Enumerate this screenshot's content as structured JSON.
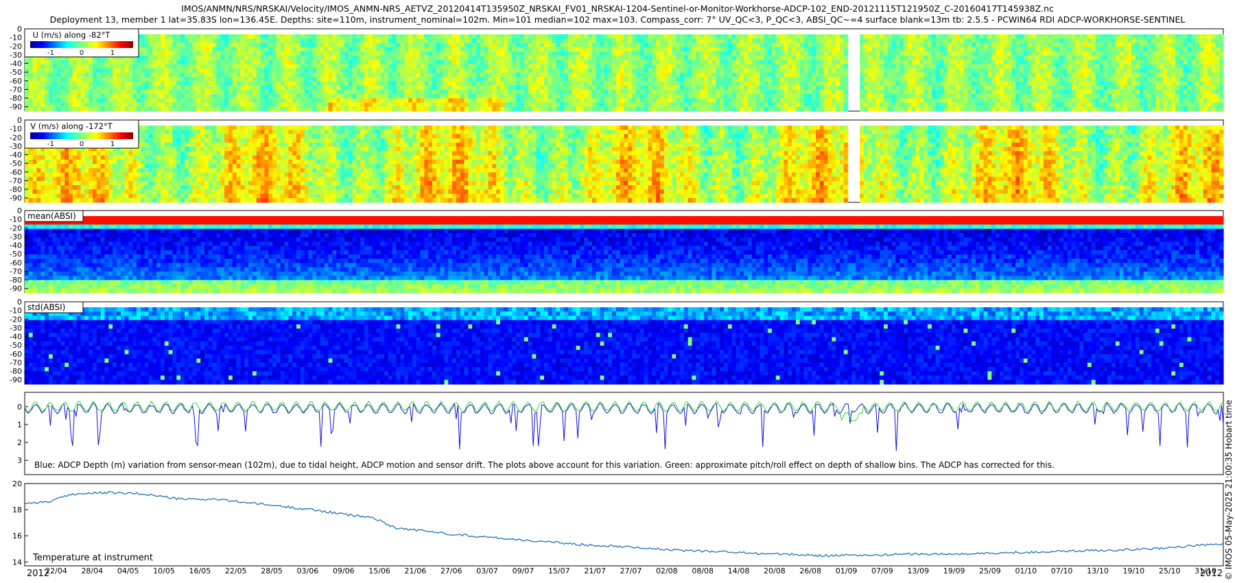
{
  "header": {
    "title_line1": "IMOS/ANMN/NRS/NRSKAI/Velocity/IMOS_ANMN-NRS_AETVZ_20120414T135950Z_NRSKAI_FV01_NRSKAI-1204-Sentinel-or-Monitor-Workhorse-ADCP-102_END-20121115T121950Z_C-20160417T145938Z.nc",
    "title_line2": "Deployment 13, member 1 lat=35.83S lon=136.45E. Depths: site=110m, instrument_nominal=102m. Min=101 median=102 max=103. Compass_corr: 7° UV_QC<3, P_QC<3, ABSI_QC~=4 surface blank=13m tb: 2.5.5 - PCWIN64 RDI ADCP-WORKHORSE-SENTINEL"
  },
  "side_credit": "© IMOS 05-May-2025 21:00:35 Hobart time",
  "colors": {
    "blue_line": "#1010d8",
    "green_line": "#22dd22",
    "temp_line": "#1f6fb4"
  },
  "chart_data": [
    {
      "type": "heatmap",
      "id": "u",
      "legend_title": "U (m/s) along -82°T",
      "colorbar_ticks": [
        "-1",
        "0",
        "1"
      ],
      "y_ticks": [
        "0",
        "-10",
        "-20",
        "-30",
        "-40",
        "-50",
        "-60",
        "-70",
        "-80",
        "-90"
      ],
      "ylim": [
        -95,
        0
      ]
    },
    {
      "type": "heatmap",
      "id": "v",
      "legend_title": "V (m/s) along -172°T",
      "colorbar_ticks": [
        "-1",
        "0",
        "1"
      ],
      "y_ticks": [
        "0",
        "-10",
        "-20",
        "-30",
        "-40",
        "-50",
        "-60",
        "-70",
        "-80",
        "-90"
      ],
      "ylim": [
        -95,
        0
      ]
    },
    {
      "type": "heatmap",
      "id": "mean_absi",
      "label": "mean(ABSI)",
      "y_ticks": [
        "0",
        "-10",
        "-20",
        "-30",
        "-40",
        "-50",
        "-60",
        "-70",
        "-80",
        "-90"
      ],
      "ylim": [
        -95,
        0
      ]
    },
    {
      "type": "heatmap",
      "id": "std_absi",
      "label": "std(ABSI)",
      "y_ticks": [
        "0",
        "-10",
        "-20",
        "-30",
        "-40",
        "-50",
        "-60",
        "-70",
        "-80",
        "-90"
      ],
      "ylim": [
        -95,
        0
      ]
    },
    {
      "type": "line",
      "id": "depth",
      "caption": "Blue: ADCP Depth (m) variation from sensor-mean (102m), due to tidal height, ADCP motion and sensor drift. The plots above account for this variation. Green: approximate pitch/roll effect on depth of shallow bins. The ADCP has corrected for this.",
      "y_ticks": [
        "0",
        "1",
        "2",
        "3"
      ],
      "ylim": [
        3.8,
        -0.8
      ],
      "series": [
        {
          "name": "ADCP depth variation (blue)",
          "base": 0.0
        },
        {
          "name": "pitch/roll effect (green)",
          "base": 0.1
        }
      ]
    },
    {
      "type": "line",
      "id": "temperature",
      "label": "Temperature at instrument",
      "y_ticks": [
        "20",
        "18",
        "16",
        "14"
      ],
      "ylim": [
        13.7,
        20
      ],
      "series": [
        {
          "name": "Temperature",
          "x": [
            0,
            0.02,
            0.04,
            0.07,
            0.1,
            0.13,
            0.16,
            0.2,
            0.24,
            0.27,
            0.29,
            0.3,
            0.31,
            0.33,
            0.36,
            0.4,
            0.44,
            0.47,
            0.5,
            0.54,
            0.58,
            0.6,
            0.63,
            0.66,
            0.7,
            0.74,
            0.78,
            0.82,
            0.86,
            0.9,
            0.94,
            0.97,
            1.0
          ],
          "values": [
            18.5,
            18.6,
            19.2,
            19.3,
            19.2,
            18.8,
            18.8,
            18.4,
            18.0,
            17.6,
            17.4,
            17.0,
            16.6,
            16.4,
            16.1,
            15.8,
            15.5,
            15.3,
            15.2,
            14.9,
            14.8,
            14.7,
            14.6,
            14.5,
            14.5,
            14.6,
            14.6,
            14.7,
            14.8,
            14.9,
            15.0,
            15.2,
            15.4
          ]
        }
      ]
    }
  ],
  "x_axis": {
    "start_year_label": "2012",
    "end_year_label": "2012",
    "ticks": [
      "22/04",
      "28/04",
      "04/05",
      "10/05",
      "16/05",
      "22/05",
      "28/05",
      "03/06",
      "09/06",
      "15/06",
      "21/06",
      "27/06",
      "03/07",
      "09/07",
      "15/07",
      "21/07",
      "27/07",
      "02/08",
      "08/08",
      "14/08",
      "20/08",
      "26/08",
      "01/09",
      "07/09",
      "13/09",
      "19/09",
      "25/09",
      "01/10",
      "07/10",
      "13/10",
      "19/10",
      "25/10",
      "31/10"
    ]
  }
}
